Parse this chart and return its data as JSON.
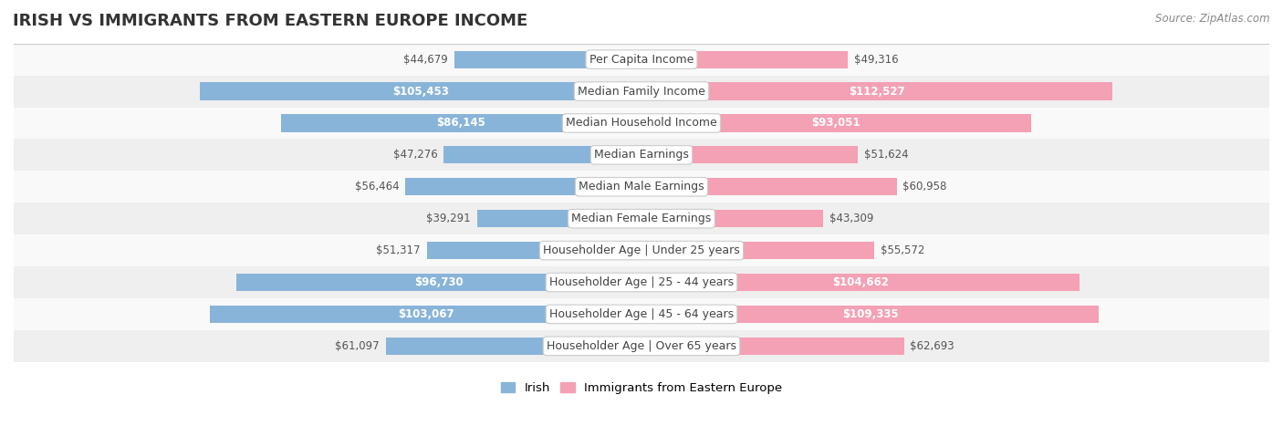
{
  "title": "IRISH VS IMMIGRANTS FROM EASTERN EUROPE INCOME",
  "source": "Source: ZipAtlas.com",
  "categories": [
    "Per Capita Income",
    "Median Family Income",
    "Median Household Income",
    "Median Earnings",
    "Median Male Earnings",
    "Median Female Earnings",
    "Householder Age | Under 25 years",
    "Householder Age | 25 - 44 years",
    "Householder Age | 45 - 64 years",
    "Householder Age | Over 65 years"
  ],
  "irish_values": [
    44679,
    105453,
    86145,
    47276,
    56464,
    39291,
    51317,
    96730,
    103067,
    61097
  ],
  "immigrant_values": [
    49316,
    112527,
    93051,
    51624,
    60958,
    43309,
    55572,
    104662,
    109335,
    62693
  ],
  "irish_color": "#89b4d9",
  "immigrant_color": "#f4a0b5",
  "irish_label": "Irish",
  "immigrant_label": "Immigrants from Eastern Europe",
  "irish_dark_color": "#5a8fc0",
  "immigrant_dark_color": "#e8607a",
  "x_max": 150000,
  "bg_color": "#f5f5f5",
  "row_bg_light": "#f9f9f9",
  "row_bg_dark": "#efefef",
  "label_fontsize": 9,
  "title_fontsize": 13,
  "value_threshold": 80000
}
